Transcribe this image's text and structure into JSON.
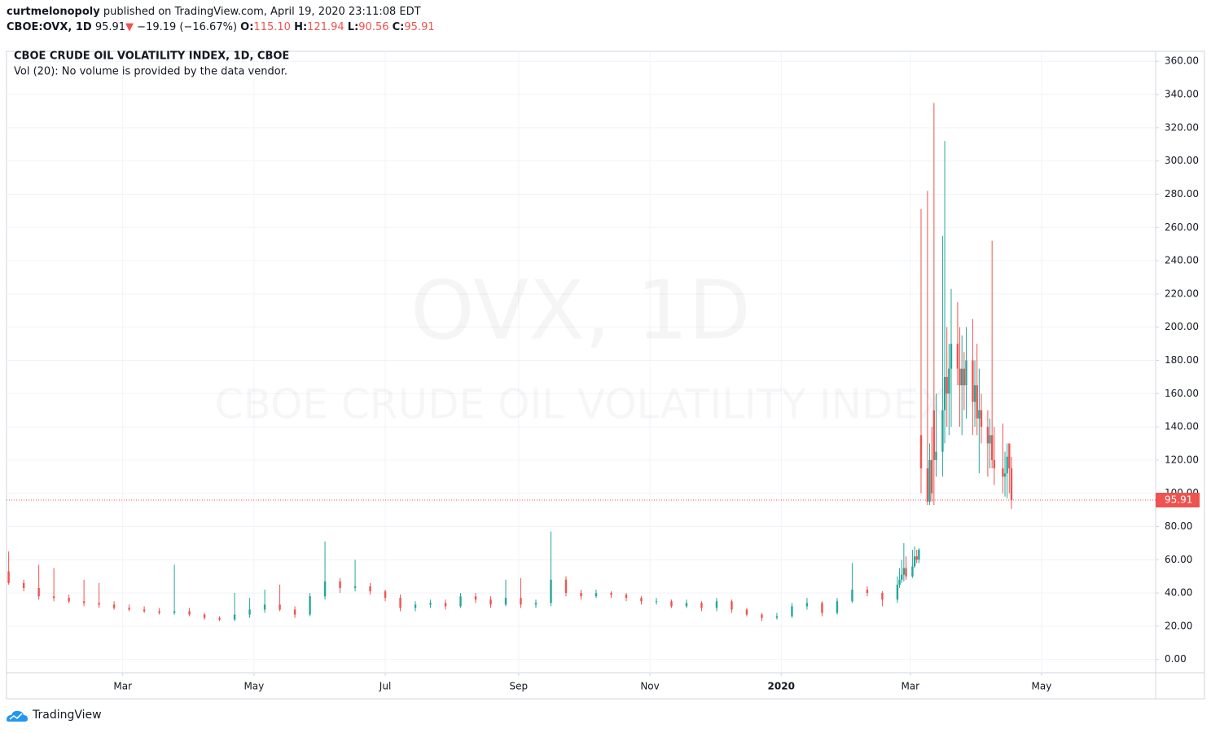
{
  "header": {
    "user": "curtmelonopoly",
    "published": "published on TradingView.com, April 19, 2020 23:11:08 EDT",
    "symbol": "CBOE:OVX, 1D",
    "last": "95.91",
    "arrow": "▼",
    "change": "−19.19 (−16.67%)",
    "ohlc": [
      {
        "key": "O:",
        "value": "115.10"
      },
      {
        "key": "H:",
        "value": "121.94"
      },
      {
        "key": "L:",
        "value": "90.56"
      },
      {
        "key": "C:",
        "value": "95.91"
      }
    ]
  },
  "chart_data": {
    "type": "candlestick",
    "title": "CBOE CRUDE OIL VOLATILITY INDEX, 1D, CBOE",
    "subtitle": "Vol (20): No volume is provided by the data vendor.",
    "watermark": [
      "OVX, 1D",
      "CBOE CRUDE OIL VOLATILITY INDEX"
    ],
    "up_color": "#26a69a",
    "down_color": "#ef5350",
    "grid": true,
    "xlim": [
      "2019-01-06",
      "2020-06-23"
    ],
    "xticks": [
      {
        "value": "2019-03-01",
        "label": "Mar"
      },
      {
        "value": "2019-05-01",
        "label": "May"
      },
      {
        "value": "2019-07-01",
        "label": "Jul"
      },
      {
        "value": "2019-09-01",
        "label": "Sep"
      },
      {
        "value": "2019-11-01",
        "label": "Nov"
      },
      {
        "value": "2020-01-01",
        "label": "2020"
      },
      {
        "value": "2020-03-01",
        "label": "Mar"
      },
      {
        "value": "2020-05-01",
        "label": "May"
      }
    ],
    "ylim": [
      -8,
      366
    ],
    "yticks": [
      {
        "value": 0,
        "label": "0.00"
      },
      {
        "value": 20,
        "label": "20.00"
      },
      {
        "value": 40,
        "label": "40.00"
      },
      {
        "value": 60,
        "label": "60.00"
      },
      {
        "value": 80,
        "label": "80.00"
      },
      {
        "value": 100,
        "label": "100.00"
      },
      {
        "value": 120,
        "label": "120.00"
      },
      {
        "value": 140,
        "label": "140.00"
      },
      {
        "value": 160,
        "label": "160.00"
      },
      {
        "value": 180,
        "label": "180.00"
      },
      {
        "value": 200,
        "label": "200.00"
      },
      {
        "value": 220,
        "label": "220.00"
      },
      {
        "value": 240,
        "label": "240.00"
      },
      {
        "value": 260,
        "label": "260.00"
      },
      {
        "value": 280,
        "label": "280.00"
      },
      {
        "value": 300,
        "label": "300.00"
      },
      {
        "value": 320,
        "label": "320.00"
      },
      {
        "value": 340,
        "label": "340.00"
      },
      {
        "value": 360,
        "label": "360.00"
      }
    ],
    "last_price": 95.91,
    "x": [
      "2019-01-07",
      "2019-01-14",
      "2019-01-21",
      "2019-01-28",
      "2019-02-04",
      "2019-02-11",
      "2019-02-18",
      "2019-02-25",
      "2019-03-04",
      "2019-03-11",
      "2019-03-18",
      "2019-03-25",
      "2019-04-01",
      "2019-04-08",
      "2019-04-15",
      "2019-04-22",
      "2019-04-29",
      "2019-05-06",
      "2019-05-13",
      "2019-05-20",
      "2019-05-27",
      "2019-06-03",
      "2019-06-10",
      "2019-06-17",
      "2019-06-24",
      "2019-07-01",
      "2019-07-08",
      "2019-07-15",
      "2019-07-22",
      "2019-07-29",
      "2019-08-05",
      "2019-08-12",
      "2019-08-19",
      "2019-08-26",
      "2019-09-02",
      "2019-09-09",
      "2019-09-16",
      "2019-09-23",
      "2019-09-30",
      "2019-10-07",
      "2019-10-14",
      "2019-10-21",
      "2019-10-28",
      "2019-11-04",
      "2019-11-11",
      "2019-11-18",
      "2019-11-25",
      "2019-12-02",
      "2019-12-09",
      "2019-12-16",
      "2019-12-23",
      "2019-12-30",
      "2020-01-06",
      "2020-01-13",
      "2020-01-20",
      "2020-01-27",
      "2020-02-03",
      "2020-02-10",
      "2020-02-17",
      "2020-02-24",
      "2020-02-25",
      "2020-02-26",
      "2020-02-27",
      "2020-02-28",
      "2020-03-02",
      "2020-03-03",
      "2020-03-04",
      "2020-03-05",
      "2020-03-06",
      "2020-03-09",
      "2020-03-10",
      "2020-03-11",
      "2020-03-12",
      "2020-03-13",
      "2020-03-16",
      "2020-03-17",
      "2020-03-18",
      "2020-03-19",
      "2020-03-20",
      "2020-03-23",
      "2020-03-24",
      "2020-03-25",
      "2020-03-26",
      "2020-03-27",
      "2020-03-30",
      "2020-03-31",
      "2020-04-01",
      "2020-04-02",
      "2020-04-03",
      "2020-04-06",
      "2020-04-07",
      "2020-04-08",
      "2020-04-09",
      "2020-04-13",
      "2020-04-14",
      "2020-04-15",
      "2020-04-16",
      "2020-04-17"
    ],
    "open": [
      53,
      46,
      43,
      38,
      37,
      35,
      34,
      33,
      31,
      30,
      29,
      28,
      29,
      27,
      25,
      24,
      27,
      30,
      33,
      30,
      27,
      38,
      47,
      43,
      44,
      41,
      37,
      31,
      33,
      34,
      32,
      38,
      36,
      33,
      37,
      33,
      34,
      48,
      40,
      38,
      40,
      39,
      37,
      35,
      35,
      32,
      34,
      31,
      35,
      30,
      27,
      25,
      26,
      32,
      34,
      28,
      35,
      42,
      40,
      36,
      45,
      48,
      51,
      55,
      50,
      56,
      62,
      60,
      135,
      115,
      95,
      120,
      150,
      120,
      125,
      150,
      170,
      160,
      175,
      190,
      175,
      165,
      175,
      165,
      180,
      155,
      165,
      145,
      150,
      140,
      130,
      135,
      120,
      115,
      110,
      112,
      130,
      115.1
    ],
    "high": [
      65,
      48,
      57,
      55,
      39,
      48,
      46,
      35,
      33,
      32,
      31,
      57,
      31,
      28,
      26,
      40,
      37,
      42,
      45,
      32,
      40,
      71,
      49,
      60,
      46,
      42,
      39,
      35,
      36,
      36,
      40,
      40,
      38,
      48,
      49,
      36,
      77,
      50,
      42,
      42,
      41,
      40,
      38,
      37,
      36,
      36,
      35,
      37,
      36,
      31,
      28,
      28,
      34,
      37,
      35,
      37,
      58,
      44,
      41,
      50,
      55,
      60,
      70,
      62,
      66,
      68,
      66,
      67,
      271,
      282,
      130,
      140,
      335,
      160,
      255,
      312,
      200,
      190,
      223,
      215,
      200,
      195,
      185,
      200,
      205,
      180,
      190,
      175,
      160,
      150,
      145,
      252,
      140,
      142,
      125,
      130,
      130,
      121.94
    ],
    "low": [
      45,
      41,
      36,
      35,
      34,
      32,
      31,
      30,
      29,
      28,
      27,
      27,
      26,
      24,
      23,
      23,
      25,
      28,
      29,
      25,
      26,
      36,
      40,
      41,
      39,
      35,
      29,
      29,
      31,
      30,
      31,
      34,
      31,
      32,
      31,
      31,
      32,
      38,
      36,
      37,
      37,
      35,
      33,
      33,
      31,
      31,
      29,
      29,
      28,
      26,
      23,
      24,
      25,
      30,
      26,
      27,
      34,
      38,
      32,
      34,
      43,
      46,
      47,
      48,
      49,
      55,
      58,
      58,
      100,
      93,
      93,
      95,
      93,
      110,
      110,
      130,
      140,
      135,
      140,
      165,
      140,
      135,
      150,
      145,
      135,
      140,
      135,
      112,
      130,
      110,
      115,
      115,
      105,
      100,
      98,
      97,
      100,
      90.56
    ],
    "close": [
      46,
      43,
      38,
      37,
      35,
      34,
      33,
      31,
      30,
      29,
      28,
      29,
      27,
      25,
      24,
      27,
      30,
      33,
      30,
      27,
      38,
      47,
      43,
      44,
      41,
      37,
      31,
      33,
      34,
      32,
      38,
      36,
      33,
      37,
      33,
      34,
      48,
      40,
      38,
      40,
      39,
      37,
      35,
      35,
      32,
      34,
      31,
      35,
      30,
      27,
      25,
      26,
      32,
      34,
      28,
      35,
      42,
      40,
      36,
      45,
      48,
      51,
      55,
      50,
      56,
      62,
      60,
      66,
      115,
      95,
      120,
      100,
      120,
      125,
      150,
      170,
      160,
      175,
      190,
      175,
      165,
      175,
      165,
      180,
      155,
      165,
      145,
      150,
      140,
      130,
      135,
      120,
      115,
      110,
      112,
      122,
      115,
      95.91
    ]
  }
}
